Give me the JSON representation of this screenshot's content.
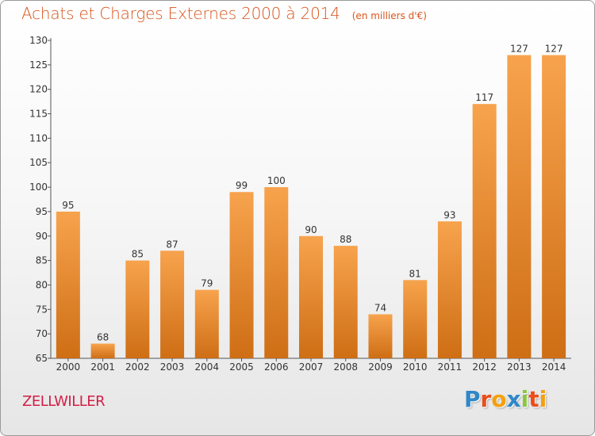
{
  "header": {
    "title": "Achats et Charges Externes 2000 à 2014",
    "units": "(en milliers d'€)"
  },
  "footer": {
    "town": "ZELLWILLER",
    "brand_letters": [
      "P",
      "r",
      "o",
      "x",
      "i",
      "t",
      "i"
    ],
    "brand_colors": [
      "#2f87c8",
      "#e94e1b",
      "#f5a00c",
      "#2f87c8",
      "#8cc63f",
      "#e94e1b",
      "#f5a00c"
    ]
  },
  "chart_data": {
    "type": "bar",
    "categories": [
      "2000",
      "2001",
      "2002",
      "2003",
      "2004",
      "2005",
      "2006",
      "2007",
      "2008",
      "2009",
      "2010",
      "2011",
      "2012",
      "2013",
      "2014"
    ],
    "values": [
      95,
      68,
      85,
      87,
      79,
      99,
      100,
      90,
      88,
      74,
      81,
      93,
      117,
      127,
      127
    ],
    "data_labels": [
      "95",
      "68",
      "85",
      "87",
      "79",
      "99",
      "100",
      "90",
      "88",
      "74",
      "81",
      "93",
      "117",
      "127",
      "127"
    ],
    "yticks": [
      "65",
      "70",
      "75",
      "80",
      "85",
      "90",
      "95",
      "100",
      "105",
      "110",
      "115",
      "120",
      "125",
      "130"
    ],
    "ylim": [
      65,
      130
    ],
    "grid": false,
    "colors": {
      "bar_light": "#f7a34d",
      "bar_dark": "#ce6e15",
      "axis": "#555555"
    }
  }
}
